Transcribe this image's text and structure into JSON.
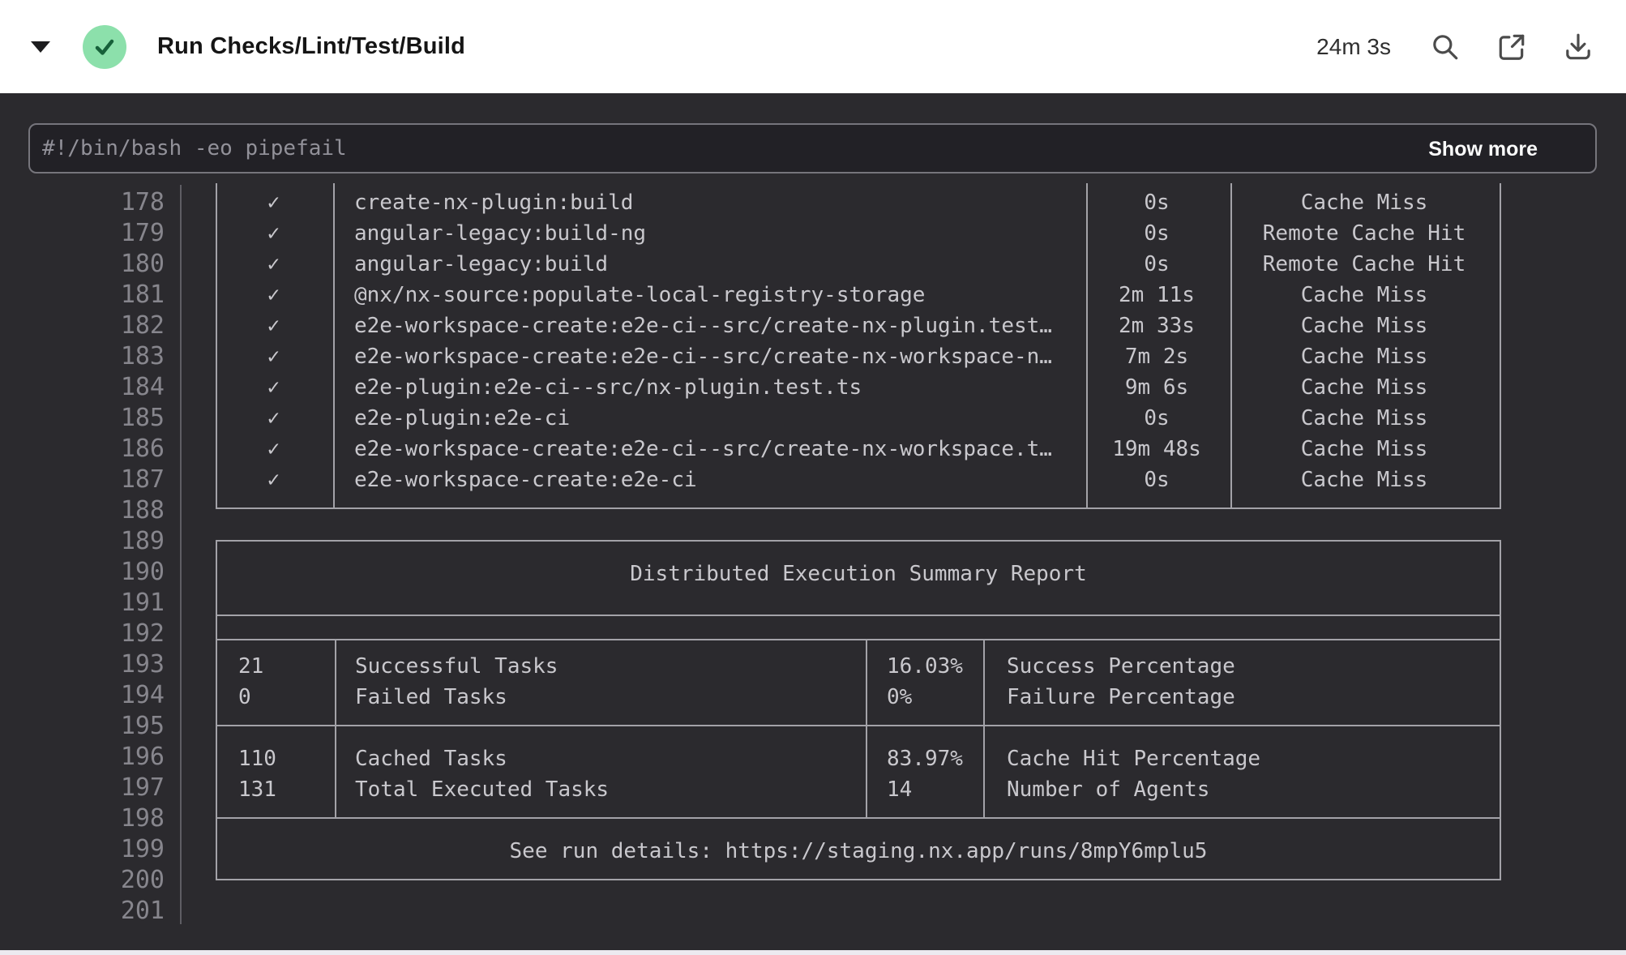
{
  "colors": {
    "header_bg": "#ffffff",
    "status_green_bg": "#8ce0ab",
    "status_green_check": "#17613a",
    "panel_bg": "#2b2a2e",
    "log_text": "#c9c8cd",
    "line_number_text": "#87868d",
    "table_border": "#a3a2a8",
    "command_text": "#929199"
  },
  "header": {
    "title": "Run Checks/Lint/Test/Build",
    "status": "success",
    "duration": "24m 3s"
  },
  "command_bar": {
    "command": "#!/bin/bash -eo pipefail",
    "show_more_label": "Show more"
  },
  "log": {
    "check_glyph": "✓",
    "line_numbers": [
      "178",
      "179",
      "180",
      "181",
      "182",
      "183",
      "184",
      "185",
      "186",
      "187",
      "188",
      "189",
      "190",
      "191",
      "192",
      "193",
      "194",
      "195",
      "196",
      "197",
      "198",
      "199",
      "200",
      "201"
    ],
    "tasks": [
      {
        "name": "create-nx-plugin:build",
        "duration": "0s",
        "cache": "Cache Miss"
      },
      {
        "name": "angular-legacy:build-ng",
        "duration": "0s",
        "cache": "Remote Cache Hit"
      },
      {
        "name": "angular-legacy:build",
        "duration": "0s",
        "cache": "Remote Cache Hit"
      },
      {
        "name": "@nx/nx-source:populate-local-registry-storage",
        "duration": "2m 11s",
        "cache": "Cache Miss"
      },
      {
        "name": "e2e-workspace-create:e2e-ci--src/create-nx-plugin.test…",
        "duration": "2m 33s",
        "cache": "Cache Miss"
      },
      {
        "name": "e2e-workspace-create:e2e-ci--src/create-nx-workspace-n…",
        "duration": "7m 2s",
        "cache": "Cache Miss"
      },
      {
        "name": "e2e-plugin:e2e-ci--src/nx-plugin.test.ts",
        "duration": "9m 6s",
        "cache": "Cache Miss"
      },
      {
        "name": "e2e-plugin:e2e-ci",
        "duration": "0s",
        "cache": "Cache Miss"
      },
      {
        "name": "e2e-workspace-create:e2e-ci--src/create-nx-workspace.t…",
        "duration": "19m 48s",
        "cache": "Cache Miss"
      },
      {
        "name": "e2e-workspace-create:e2e-ci",
        "duration": "0s",
        "cache": "Cache Miss"
      }
    ],
    "summary": {
      "title": "Distributed Execution Summary Report",
      "blocks": [
        {
          "rows": [
            {
              "value": "21",
              "label": "Successful Tasks",
              "pct": "16.03%",
              "pct_label": "Success Percentage"
            },
            {
              "value": "0",
              "label": "Failed Tasks",
              "pct": "0%",
              "pct_label": "Failure Percentage"
            }
          ]
        },
        {
          "rows": [
            {
              "value": "110",
              "label": "Cached Tasks",
              "pct": "83.97%",
              "pct_label": "Cache Hit Percentage"
            },
            {
              "value": "131",
              "label": "Total Executed Tasks",
              "pct": "14",
              "pct_label": "Number of Agents"
            }
          ]
        }
      ],
      "run_details": "See run details: https://staging.nx.app/runs/8mpY6mplu5"
    }
  }
}
